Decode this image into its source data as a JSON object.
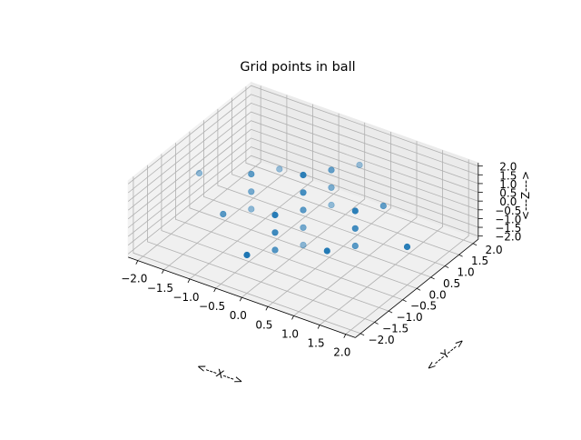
{
  "chart_data": {
    "type": "scatter",
    "title": "Grid points in ball",
    "xlabel": "<---X--->",
    "ylabel": "<---Y--->",
    "zlabel": "<---Z--->",
    "xlim": [
      -2,
      2
    ],
    "ylim": [
      -2,
      2
    ],
    "zlim": [
      -2,
      2
    ],
    "ticks": {
      "x": [
        "−2.0",
        "−1.5",
        "−1.0",
        "−0.5",
        "0.0",
        "0.5",
        "1.0",
        "1.5",
        "2.0"
      ],
      "y": [
        "−2.0",
        "−1.5",
        "−1.0",
        "−0.5",
        "0.0",
        "0.5",
        "1.0",
        "1.5",
        "2.0"
      ],
      "z": [
        "−2.0",
        "−1.5",
        "−1.0",
        "−0.5",
        "0.0",
        "0.5",
        "1.0",
        "1.5",
        "2.0"
      ]
    },
    "grid": true,
    "color": "#1f77b4",
    "points": [
      {
        "x": 0,
        "y": 0,
        "z": 2
      },
      {
        "x": 0,
        "y": 0,
        "z": 1
      },
      {
        "x": 0,
        "y": 0,
        "z": 0
      },
      {
        "x": 0,
        "y": 0,
        "z": -1
      },
      {
        "x": 0,
        "y": 0,
        "z": -2
      },
      {
        "x": 1,
        "y": 0,
        "z": 1
      },
      {
        "x": 1,
        "y": 0,
        "z": 0
      },
      {
        "x": 1,
        "y": 0,
        "z": -1
      },
      {
        "x": -1,
        "y": 0,
        "z": 1
      },
      {
        "x": -1,
        "y": 0,
        "z": 0
      },
      {
        "x": -1,
        "y": 0,
        "z": -1
      },
      {
        "x": 0,
        "y": 1,
        "z": 1
      },
      {
        "x": 0,
        "y": 1,
        "z": 0
      },
      {
        "x": 0,
        "y": 1,
        "z": -1
      },
      {
        "x": 0,
        "y": -1,
        "z": 1
      },
      {
        "x": 0,
        "y": -1,
        "z": 0
      },
      {
        "x": 0,
        "y": -1,
        "z": -1
      },
      {
        "x": 1,
        "y": 1,
        "z": 0
      },
      {
        "x": 1,
        "y": -1,
        "z": 0
      },
      {
        "x": -1,
        "y": 1,
        "z": 0
      },
      {
        "x": -1,
        "y": -1,
        "z": 0
      },
      {
        "x": 2,
        "y": 0,
        "z": 0
      },
      {
        "x": -2,
        "y": 0,
        "z": 0
      },
      {
        "x": 0,
        "y": 2,
        "z": 0
      },
      {
        "x": 0,
        "y": -2,
        "z": 0
      }
    ]
  }
}
